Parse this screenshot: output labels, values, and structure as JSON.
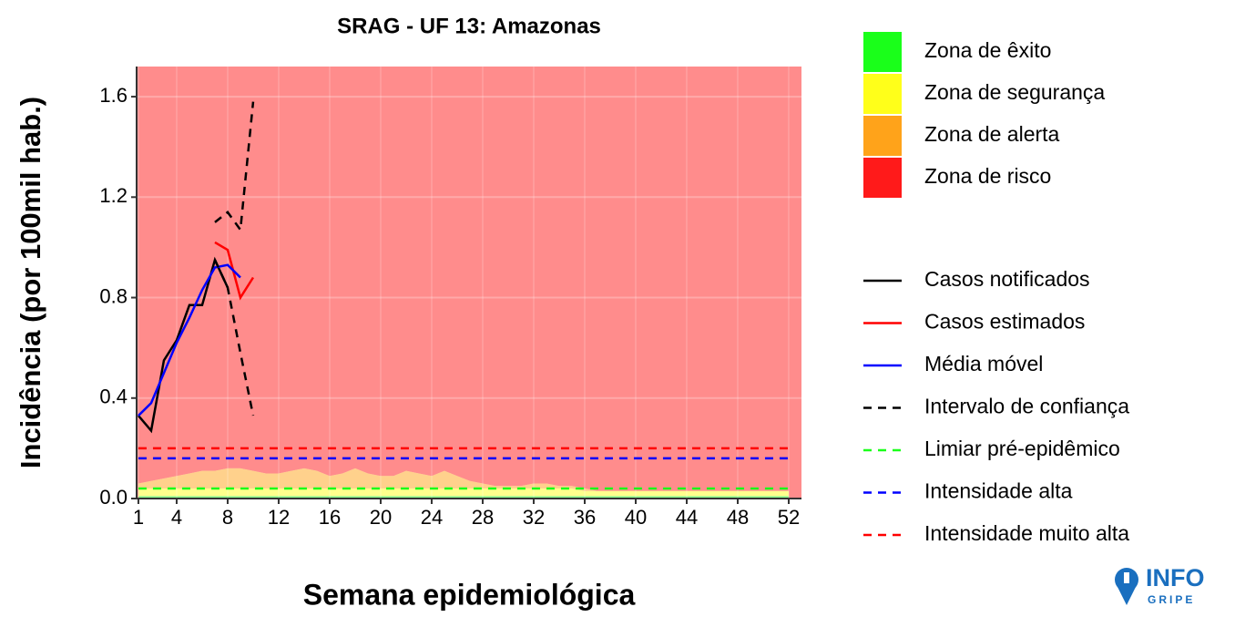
{
  "chart_data": {
    "type": "line",
    "title": "SRAG - UF 13: Amazonas",
    "x_label": "Semana epidemiológica",
    "y_label": "Incidência (por 100mil hab.)",
    "xlim": [
      0.86,
      53
    ],
    "ylim": [
      0,
      1.72
    ],
    "xticks": [
      1,
      4,
      8,
      12,
      16,
      20,
      24,
      28,
      32,
      36,
      40,
      44,
      48,
      52
    ],
    "yticks": [
      {
        "value": 0,
        "label": "0.0"
      },
      {
        "value": 0.4,
        "label": "0.4"
      },
      {
        "value": 0.8,
        "label": "0.8"
      },
      {
        "value": 1.2,
        "label": "1.2"
      },
      {
        "value": 1.6,
        "label": "1.6"
      }
    ],
    "grid": true,
    "x": [
      1,
      2,
      3,
      4,
      5,
      6,
      7,
      8,
      9,
      10,
      11,
      12,
      13,
      14,
      15,
      16,
      17,
      18,
      19,
      20,
      21,
      22,
      23,
      24,
      25,
      26,
      27,
      28,
      29,
      30,
      31,
      32,
      33,
      34,
      35,
      36,
      37,
      38,
      39,
      40,
      41,
      42,
      43,
      44,
      45,
      46,
      47,
      48,
      49,
      50,
      51,
      52
    ],
    "zones": [
      {
        "name": "Zona de êxito",
        "color": "#1aff1a",
        "values": [
          0.01,
          0.01,
          0.01,
          0.01,
          0.01,
          0.01,
          0.01,
          0.01,
          0.01,
          0.01,
          0.01,
          0.01,
          0.01,
          0.01,
          0.01,
          0.01,
          0.01,
          0.01,
          0.01,
          0.01,
          0.01,
          0.01,
          0.01,
          0.01,
          0.01,
          0.01,
          0.01,
          0.01,
          0.01,
          0.01,
          0.01,
          0.01,
          0.01,
          0.01,
          0.01,
          0.01,
          0.01,
          0.01,
          0.01,
          0.01,
          0.01,
          0.01,
          0.01,
          0.01,
          0.01,
          0.01,
          0.01,
          0.01,
          0.01,
          0.01,
          0.01,
          0.01
        ]
      },
      {
        "name": "Zona de segurança",
        "color": "#ffff1a",
        "values": [
          0.03,
          0.03,
          0.03,
          0.03,
          0.03,
          0.03,
          0.03,
          0.03,
          0.03,
          0.03,
          0.03,
          0.03,
          0.03,
          0.03,
          0.03,
          0.03,
          0.03,
          0.03,
          0.03,
          0.03,
          0.03,
          0.03,
          0.03,
          0.03,
          0.03,
          0.03,
          0.03,
          0.03,
          0.03,
          0.03,
          0.03,
          0.03,
          0.03,
          0.03,
          0.03,
          0.02,
          0.02,
          0.02,
          0.02,
          0.02,
          0.02,
          0.02,
          0.02,
          0.02,
          0.02,
          0.02,
          0.02,
          0.02,
          0.02,
          0.02,
          0.02,
          0.02
        ]
      },
      {
        "name": "Zona de alerta",
        "color": "#ffa31a",
        "values": [
          0.02,
          0.03,
          0.04,
          0.05,
          0.06,
          0.07,
          0.07,
          0.08,
          0.08,
          0.07,
          0.06,
          0.06,
          0.07,
          0.08,
          0.07,
          0.05,
          0.06,
          0.08,
          0.06,
          0.05,
          0.05,
          0.07,
          0.06,
          0.05,
          0.07,
          0.05,
          0.03,
          0.02,
          0.01,
          0.01,
          0.01,
          0.02,
          0.02,
          0.01,
          0.01,
          0.01,
          0,
          0,
          0,
          0,
          0,
          0,
          0,
          0,
          0,
          0,
          0,
          0,
          0,
          0,
          0,
          0
        ]
      },
      {
        "name": "Zona de risco",
        "color": "#ff1a1a"
      }
    ],
    "series": [
      {
        "name": "Casos notificados",
        "color": "#000000",
        "x": [
          1,
          2,
          3,
          4,
          5,
          6,
          7,
          8
        ],
        "values": [
          0.33,
          0.27,
          0.55,
          0.63,
          0.77,
          0.77,
          0.95,
          0.84
        ]
      },
      {
        "name": "Casos estimados",
        "color": "#ff0000",
        "x": [
          7,
          8,
          9,
          10
        ],
        "values": [
          1.02,
          0.99,
          0.8,
          0.88
        ]
      },
      {
        "name": "Média móvel",
        "color": "#0000ff",
        "x": [
          1,
          2,
          3,
          4,
          5,
          6,
          7,
          8,
          9
        ],
        "values": [
          0.33,
          0.38,
          0.5,
          0.62,
          0.72,
          0.83,
          0.92,
          0.93,
          0.88
        ]
      },
      {
        "name": "Intervalo de confiança",
        "color": "#000000",
        "dash": true,
        "x": [
          7,
          8,
          9,
          10
        ],
        "lower": [
          0.95,
          0.84,
          0.58,
          0.33
        ],
        "upper": [
          1.1,
          1.14,
          1.07,
          1.58
        ]
      }
    ],
    "thresholds": [
      {
        "name": "Limiar pré-epidêmico",
        "color": "#1aff1a",
        "value": 0.04
      },
      {
        "name": "Intensidade alta",
        "color": "#0000ff",
        "value": 0.16
      },
      {
        "name": "Intensidade muito alta",
        "color": "#ff0000",
        "value": 0.2
      }
    ]
  },
  "logo": {
    "top": "INFO",
    "bottom": "GRIPE"
  }
}
